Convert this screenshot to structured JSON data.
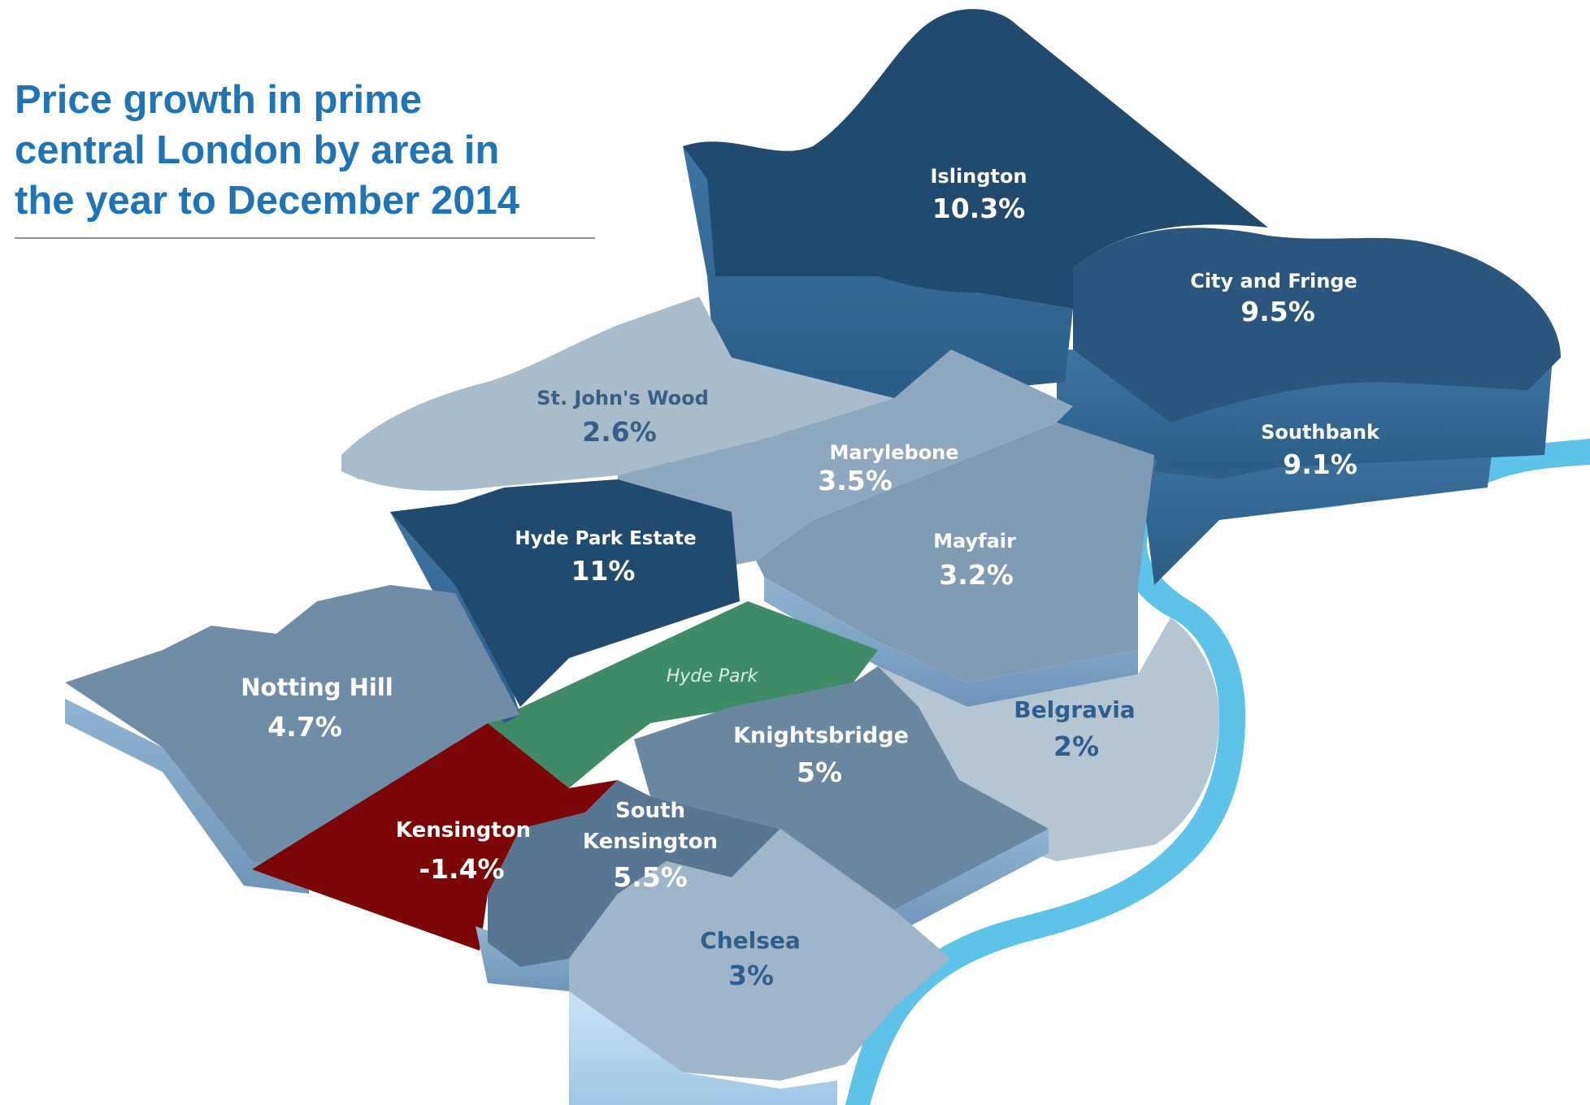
{
  "title": {
    "line1": "Price growth in prime",
    "line2": "central London by area in",
    "line3": "the year to December 2014"
  },
  "colors": {
    "title": "#1f74b8",
    "high_growth": "#1f4e73",
    "mid_growth": "#5f82a0",
    "low_growth": "#a9bccc",
    "negative_growth": "#7c0606",
    "park": "#3f8a67",
    "river": "#5ec3e8"
  },
  "areas": [
    {
      "key": "islington",
      "name": "Islington",
      "growth": "10.3%",
      "value": 10.3
    },
    {
      "key": "city",
      "name": "City and Fringe",
      "growth": "9.5%",
      "value": 9.5
    },
    {
      "key": "southbank",
      "name": "Southbank",
      "growth": "9.1%",
      "value": 9.1
    },
    {
      "key": "stjohns",
      "name": "St. John's Wood",
      "growth": "2.6%",
      "value": 2.6
    },
    {
      "key": "marylebone",
      "name": "Marylebone",
      "growth": "3.5%",
      "value": 3.5
    },
    {
      "key": "hydeparkestate",
      "name": "Hyde Park Estate",
      "growth": "11%",
      "value": 11
    },
    {
      "key": "mayfair",
      "name": "Mayfair",
      "growth": "3.2%",
      "value": 3.2
    },
    {
      "key": "nottinghill",
      "name": "Notting Hill",
      "growth": "4.7%",
      "value": 4.7
    },
    {
      "key": "belgravia",
      "name": "Belgravia",
      "growth": "2%",
      "value": 2
    },
    {
      "key": "knightsbridge",
      "name": "Knightsbridge",
      "growth": "5%",
      "value": 5
    },
    {
      "key": "kensington",
      "name": "Kensington",
      "growth": "-1.4%",
      "value": -1.4
    },
    {
      "key": "southken_line1",
      "name": "South",
      "growth": "",
      "value": 5.5
    },
    {
      "key": "southken_line2",
      "name": "Kensington",
      "growth": "5.5%",
      "value": 5.5
    },
    {
      "key": "chelsea",
      "name": "Chelsea",
      "growth": "3%",
      "value": 3
    }
  ],
  "park": {
    "name": "Hyde Park"
  }
}
